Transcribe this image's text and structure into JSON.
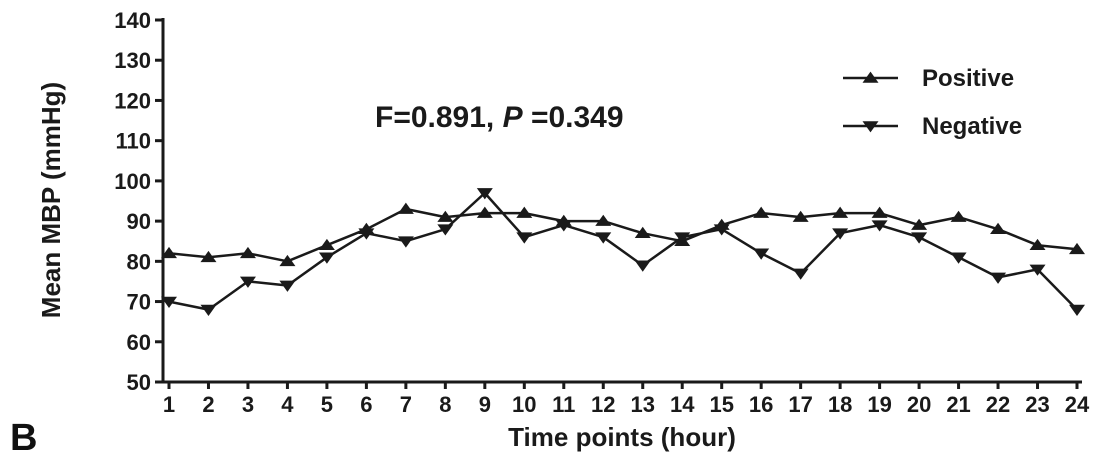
{
  "panel_label": "B",
  "annotation": {
    "prefix": "F=0.891, ",
    "p_symbol": "P",
    "suffix": " =0.349"
  },
  "chart_data": {
    "type": "line",
    "xlabel": "Time points (hour)",
    "ylabel": "Mean MBP (mmHg)",
    "ylim": [
      50,
      140
    ],
    "yticks": [
      50,
      60,
      70,
      80,
      90,
      100,
      110,
      120,
      130,
      140
    ],
    "x": [
      1,
      2,
      3,
      4,
      5,
      6,
      7,
      8,
      9,
      10,
      11,
      12,
      13,
      14,
      15,
      16,
      17,
      18,
      19,
      20,
      21,
      22,
      23,
      24
    ],
    "legend_position": "top-right",
    "grid": false,
    "series": [
      {
        "name": "Positive",
        "marker": "triangle-up",
        "values": [
          82,
          81,
          82,
          80,
          84,
          88,
          93,
          91,
          92,
          92,
          90,
          90,
          87,
          85,
          89,
          92,
          91,
          92,
          92,
          89,
          91,
          88,
          84,
          83
        ]
      },
      {
        "name": "Negative",
        "marker": "triangle-down",
        "values": [
          70,
          68,
          75,
          74,
          81,
          87,
          85,
          88,
          97,
          86,
          89,
          86,
          79,
          86,
          88,
          82,
          77,
          87,
          89,
          86,
          81,
          76,
          78,
          68
        ]
      }
    ]
  }
}
